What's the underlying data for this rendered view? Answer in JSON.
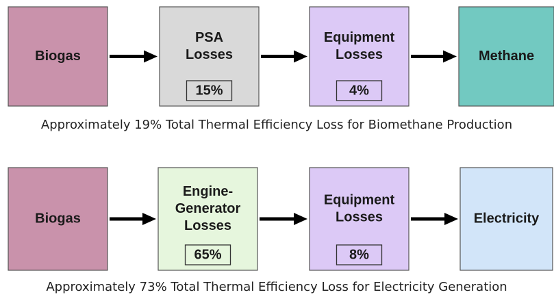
{
  "flows": [
    {
      "nodes": [
        {
          "lines": [
            "Biogas"
          ]
        },
        {
          "lines": [
            "PSA",
            "Losses"
          ],
          "loss": "15%"
        },
        {
          "lines": [
            "Equipment",
            "Losses"
          ],
          "loss": "4%"
        },
        {
          "lines": [
            "Methane"
          ]
        }
      ],
      "caption": "Approximately 19% Total Thermal Efficiency Loss for Biomethane Production"
    },
    {
      "nodes": [
        {
          "lines": [
            "Biogas"
          ]
        },
        {
          "lines": [
            "Engine-",
            "Generator",
            "Losses"
          ],
          "loss": "65%"
        },
        {
          "lines": [
            "Equipment",
            "Losses"
          ],
          "loss": "8%"
        },
        {
          "lines": [
            "Electricity"
          ]
        }
      ],
      "caption": "Approximately 73% Total Thermal Efficiency Loss for Electricity Generation"
    }
  ]
}
